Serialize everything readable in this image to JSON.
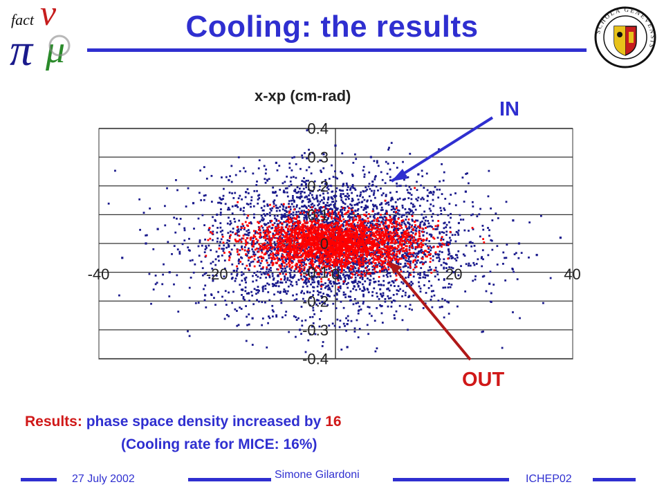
{
  "header": {
    "title": "Cooling: the results",
    "logo_text": "fact",
    "seal_text": "SCHOLA GENEVENSIS"
  },
  "chart_data": {
    "type": "scatter",
    "title": "x-xp (cm-rad)",
    "xlim": [
      -40,
      40
    ],
    "ylim": [
      -0.4,
      0.4
    ],
    "x_ticks": [
      "-40",
      "-20",
      "0",
      "20",
      "40"
    ],
    "y_ticks": [
      "0.4",
      "0.3",
      "0.2",
      "0.1",
      "0",
      "-0.1",
      "-0.2",
      "-0.3",
      "-0.4"
    ],
    "grid": "horizontal",
    "series": [
      {
        "name": "IN",
        "color": "#1a1a8c",
        "distribution": "gaussian",
        "center": [
          0,
          0
        ],
        "std": [
          11,
          0.12
        ],
        "points": [
          [
            -30,
            0.05
          ],
          [
            -36,
            -0.05
          ],
          [
            -28,
            -0.1
          ],
          [
            -24,
            0.14
          ],
          [
            -22,
            -0.18
          ],
          [
            -18,
            0.22
          ],
          [
            -14,
            -0.26
          ],
          [
            -10,
            0.28
          ],
          [
            -6,
            -0.3
          ],
          [
            -2,
            0.31
          ],
          [
            2,
            -0.28
          ],
          [
            6,
            0.3
          ],
          [
            10,
            -0.26
          ],
          [
            14,
            0.24
          ],
          [
            18,
            -0.22
          ],
          [
            22,
            0.18
          ],
          [
            26,
            -0.14
          ],
          [
            30,
            0.08
          ],
          [
            34,
            -0.04
          ],
          [
            38,
            0.02
          ],
          [
            -32,
            0.0
          ],
          [
            31,
            0.0
          ],
          [
            -20,
            0.1
          ],
          [
            20,
            -0.1
          ],
          [
            0,
            0.34
          ],
          [
            2,
            -0.36
          ]
        ]
      },
      {
        "name": "OUT",
        "color": "#ff0000",
        "distribution": "gaussian",
        "center": [
          0,
          0
        ],
        "std": [
          7,
          0.045
        ],
        "points": [
          [
            -12,
            0.02
          ],
          [
            -8,
            0.05
          ],
          [
            -4,
            -0.04
          ],
          [
            0,
            0.07
          ],
          [
            4,
            -0.06
          ],
          [
            8,
            0.04
          ],
          [
            12,
            -0.02
          ],
          [
            14,
            0.01
          ],
          [
            -14,
            -0.01
          ],
          [
            0,
            0.0
          ]
        ]
      }
    ]
  },
  "annotations": {
    "in_label": "IN",
    "out_label": "OUT",
    "in_color": "#2f2fd0",
    "out_color": "#d01818"
  },
  "results": {
    "prefix": "Results:",
    "text": " phase space density increased by ",
    "value": "16",
    "line2": "(Cooling rate for MICE: 16%)"
  },
  "footer": {
    "date": "27 July 2002",
    "author": "Simone Gilardoni",
    "conference": "ICHEP02"
  }
}
